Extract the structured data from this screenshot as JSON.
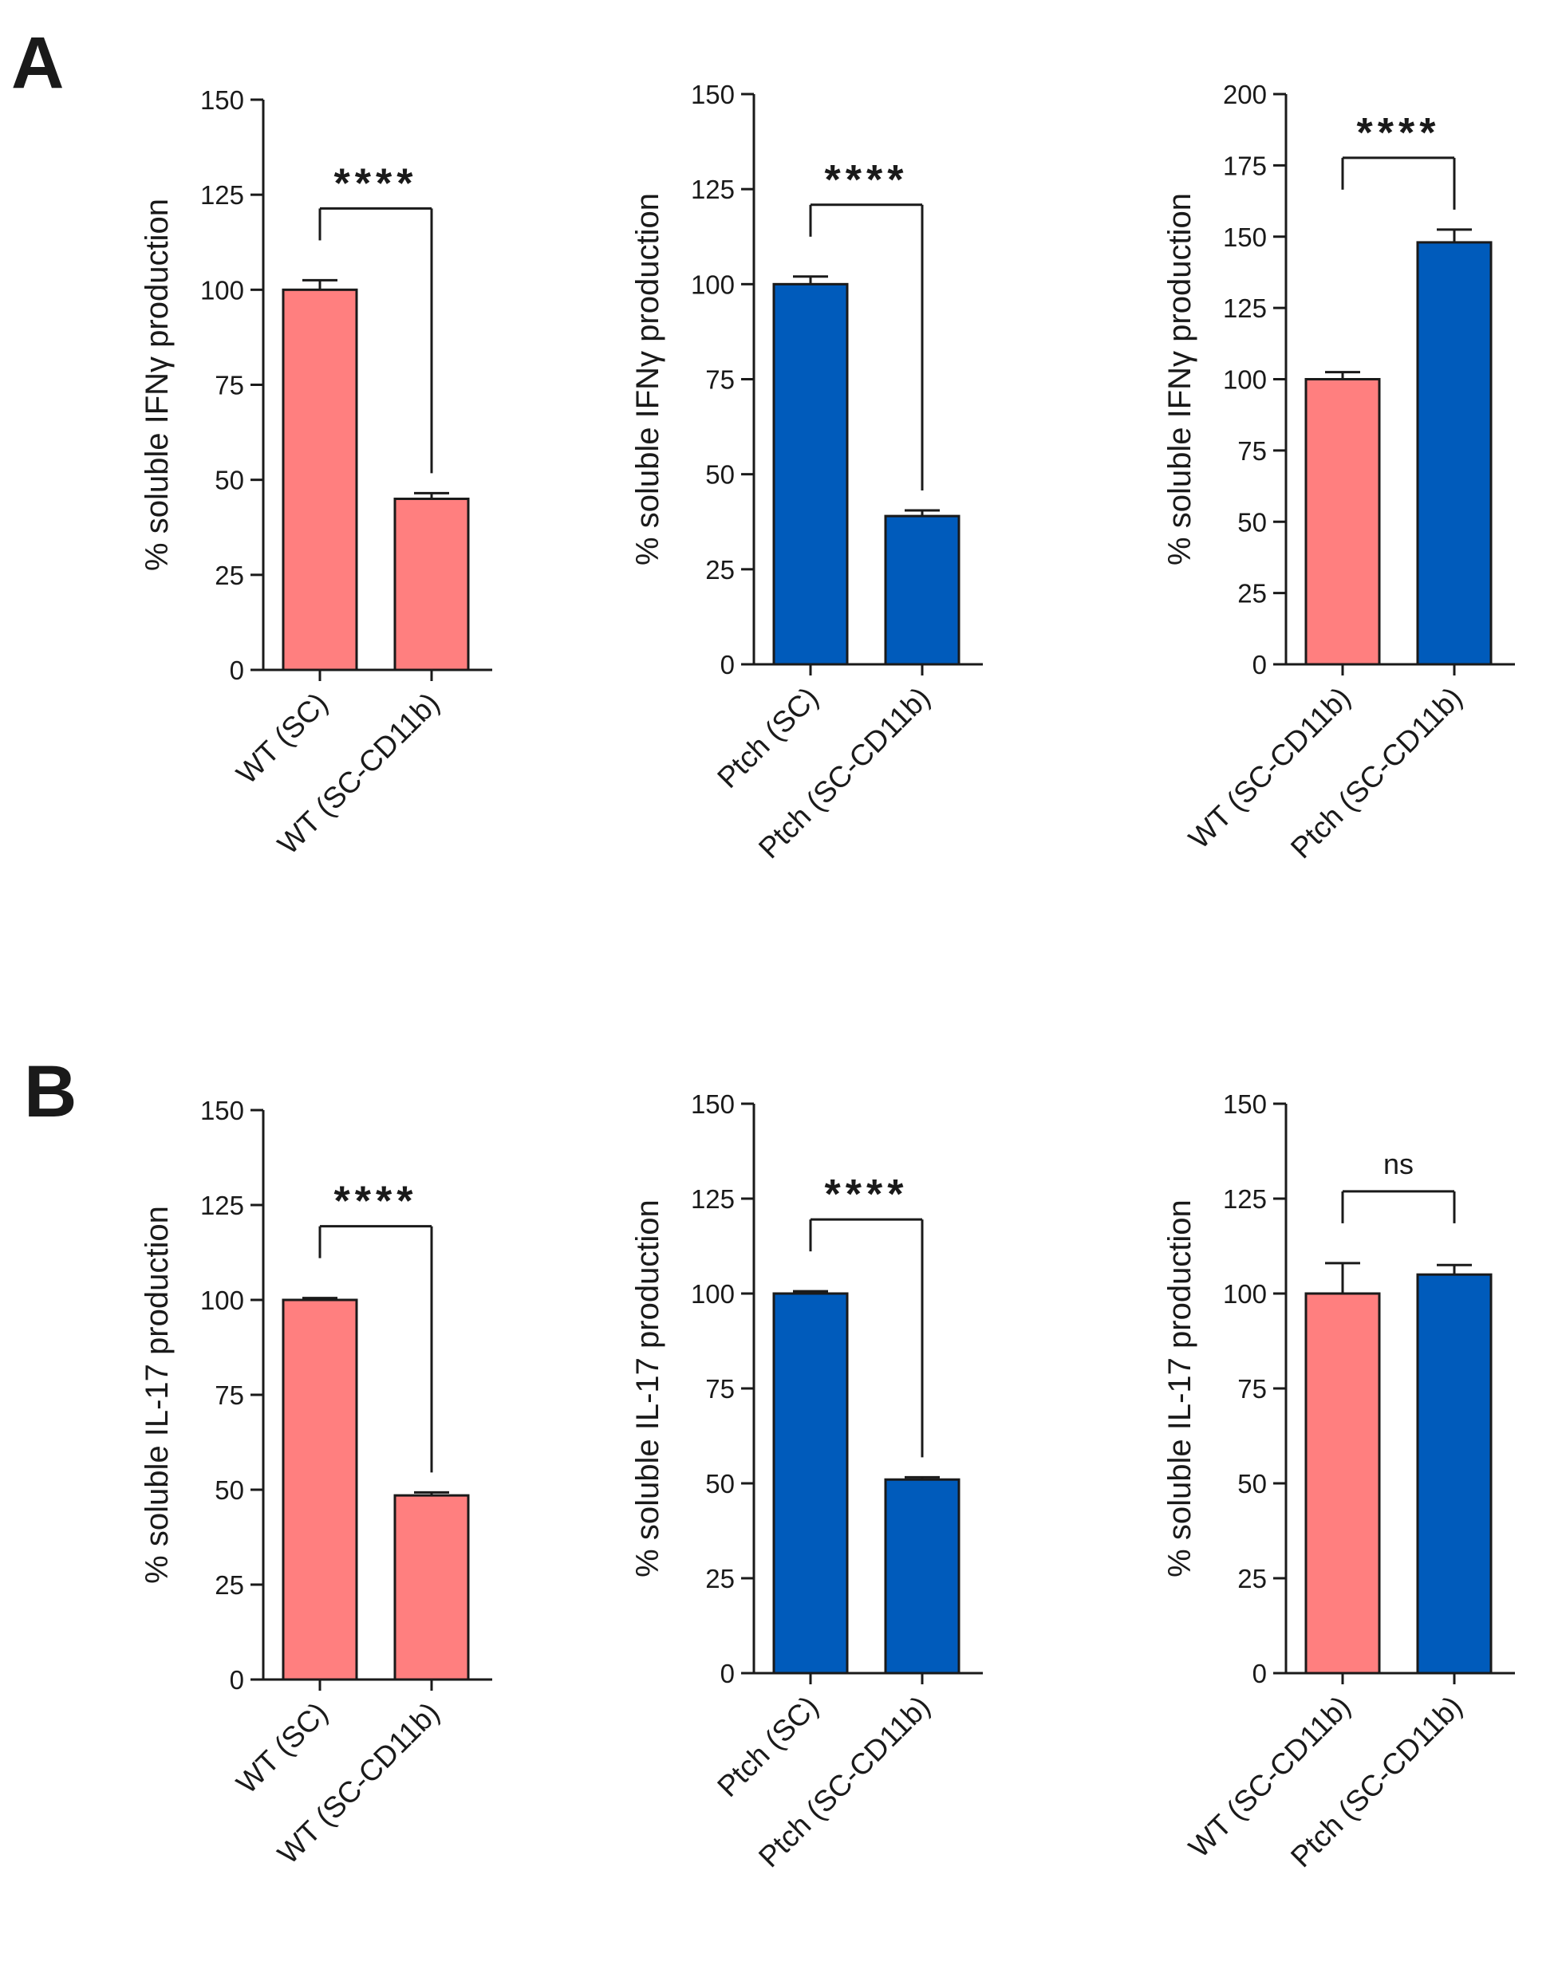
{
  "panels": [
    {
      "letter": "A"
    },
    {
      "letter": "B"
    }
  ],
  "colors": {
    "WT": "#FF7F7F",
    "Ptch": "#005BBB",
    "outline": "#1a1a1a"
  },
  "chart_data": [
    {
      "type": "bar",
      "panel": "A",
      "ylabel": "% soluble IFNγ production",
      "ylim": [
        0,
        150
      ],
      "yticks": [
        0,
        25,
        50,
        75,
        100,
        125,
        150
      ],
      "categories": [
        "WT (SC)",
        "WT (SC-CD11b)"
      ],
      "values": [
        100,
        45
      ],
      "errors": [
        2.5,
        1.5
      ],
      "bar_colors": [
        "#FF7F7F",
        "#FF7F7F"
      ],
      "significance": "****"
    },
    {
      "type": "bar",
      "panel": "A",
      "ylabel": "% soluble IFNγ production",
      "ylim": [
        0,
        150
      ],
      "yticks": [
        0,
        25,
        50,
        75,
        100,
        125,
        150
      ],
      "categories": [
        "Ptch (SC)",
        "Ptch (SC-CD11b)"
      ],
      "values": [
        100,
        39
      ],
      "errors": [
        2.0,
        1.5
      ],
      "bar_colors": [
        "#005BBB",
        "#005BBB"
      ],
      "significance": "****"
    },
    {
      "type": "bar",
      "panel": "A",
      "ylabel": "% soluble IFNγ production",
      "ylim": [
        0,
        200
      ],
      "yticks": [
        0,
        25,
        50,
        75,
        100,
        125,
        150,
        175,
        200
      ],
      "categories": [
        "WT (SC-CD11b)",
        "Ptch (SC-CD11b)"
      ],
      "values": [
        100,
        148
      ],
      "errors": [
        2.5,
        4.5
      ],
      "bar_colors": [
        "#FF7F7F",
        "#005BBB"
      ],
      "significance": "****"
    },
    {
      "type": "bar",
      "panel": "B",
      "ylabel": "%  soluble IL-17 production",
      "ylim": [
        0,
        150
      ],
      "yticks": [
        0,
        25,
        50,
        75,
        100,
        125,
        150
      ],
      "categories": [
        "WT (SC)",
        "WT (SC-CD11b)"
      ],
      "values": [
        100,
        48.5
      ],
      "errors": [
        0.5,
        0.8
      ],
      "bar_colors": [
        "#FF7F7F",
        "#FF7F7F"
      ],
      "significance": "****"
    },
    {
      "type": "bar",
      "panel": "B",
      "ylabel": "% soluble IL-17 production",
      "ylim": [
        0,
        150
      ],
      "yticks": [
        0,
        25,
        50,
        75,
        100,
        125,
        150
      ],
      "categories": [
        "Ptch (SC)",
        "Ptch (SC-CD11b)"
      ],
      "values": [
        100,
        51
      ],
      "errors": [
        0.6,
        0.6
      ],
      "bar_colors": [
        "#005BBB",
        "#005BBB"
      ],
      "significance": "****"
    },
    {
      "type": "bar",
      "panel": "B",
      "ylabel": "% soluble IL-17 production",
      "ylim": [
        0,
        150
      ],
      "yticks": [
        0,
        25,
        50,
        75,
        100,
        125,
        150
      ],
      "categories": [
        "WT (SC-CD11b)",
        "Ptch (SC-CD11b)"
      ],
      "values": [
        100,
        105
      ],
      "errors": [
        8,
        2.5
      ],
      "bar_colors": [
        "#FF7F7F",
        "#005BBB"
      ],
      "significance": "ns"
    }
  ]
}
